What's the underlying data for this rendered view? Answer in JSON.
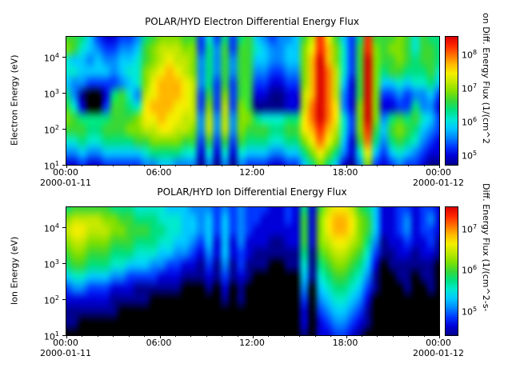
{
  "colormap": [
    "#000000",
    "#00008c",
    "#0000d8",
    "#0038ff",
    "#0088ff",
    "#00c8ff",
    "#00e8d0",
    "#00e080",
    "#38d838",
    "#80e000",
    "#c0e800",
    "#f4ee00",
    "#ffb800",
    "#ff7000",
    "#ff2800",
    "#db0000"
  ],
  "chart_data": [
    {
      "type": "heatmap",
      "title": "POLAR/HYD  Electron Differential Energy Flux",
      "ylabel": "Electron Energy (eV)",
      "tick_base": "10",
      "y_tick_exponents": [
        4,
        3,
        2,
        1
      ],
      "y_log_range": [
        1.0,
        4.55
      ],
      "x_tick_labels": [
        "00:00",
        "06:00",
        "12:00",
        "18:00",
        "00:00"
      ],
      "x_range_hours": [
        0,
        24
      ],
      "x_date_left": "2000-01-11",
      "x_date_right": "2000-01-12",
      "colorbar_label": "on Diff. Energy Flux (1/(cm^2",
      "colorbar_tick_exponents": [
        8,
        7,
        6,
        5
      ],
      "colorbar_log_range": [
        4.7,
        8.5
      ],
      "time_bins": 48,
      "energy_bins": 12,
      "grid_note": "hex intensity 0(black)-f(red); rows = energy high(top) to low(bottom); 48 half-hour columns 00:00-24:00",
      "grid": [
        "8875322334789998836373785434458aeb8537e888986877",
        "986543344589aaa9937483886544559bec9638e989986887",
        "655454455689abaa947484885544559cfc9638f988987887",
        "66555545669abcba947484884433449cfda638f978877786",
        "54433334569bcccba47383883322339cfda528f955656675",
        "7410027864abcccba3839388221122acfda428f933434453",
        "8620038876bcccbba393a398111122adfdb429f922337442",
        "9877778889bbcbbaa4a4a499766677bdfdb639f947878653",
        "8887788899aabbaa94a4a498887788bceca639e858987543",
        "6676677778899998838383877766779bdb9528d747876432",
        "44544555556777766262626555445579b97426b535654322",
        "223223333344554441414143332233579752149323433211"
      ]
    },
    {
      "type": "heatmap",
      "title": "POLAR/HYD  Ion Differential Energy Flux",
      "ylabel": "Ion Energy (eV)",
      "tick_base": "10",
      "y_tick_exponents": [
        4,
        3,
        2,
        1
      ],
      "y_log_range": [
        1.0,
        4.55
      ],
      "x_tick_labels": [
        "00:00",
        "06:00",
        "12:00",
        "18:00",
        "00:00"
      ],
      "x_range_hours": [
        0,
        24
      ],
      "x_date_left": "2000-01-11",
      "x_date_right": "2000-01-12",
      "colorbar_label": "Diff. Energy Flux (1/(cm^2-s-",
      "colorbar_tick_exponents": [
        7,
        6,
        5
      ],
      "colorbar_log_range": [
        4.4,
        7.5
      ],
      "time_bins": 48,
      "energy_bins": 12,
      "grid_note": "hex intensity 0(black)-f(red); rows = energy high(top) to low(bottom); 48 half-hour columns 00:00-24:00",
      "grid": [
        "788888777666655544434343332232728abba87522332332",
        "9aaaa9988777666554535343322232829bccb98522342342",
        "abbaaa998887766554535343222222829bccb98522342332",
        "9aa999888777665543525242221122829abba97412232231",
        "8998887776665544324252321111117189aa986311221221",
        "788777665554433221314131110011617899875201111110",
        "566555443333222111213121000000516788764100110110",
        "344333222111111000102010000000405677653100010010",
        "222222111110000000001010000000304566542000000000",
        "111111100000000000000000000000203455431000000000",
        "110000000000000000000000000000202344321000000000",
        "000000000000000000000000000000102233210000000000"
      ]
    }
  ]
}
